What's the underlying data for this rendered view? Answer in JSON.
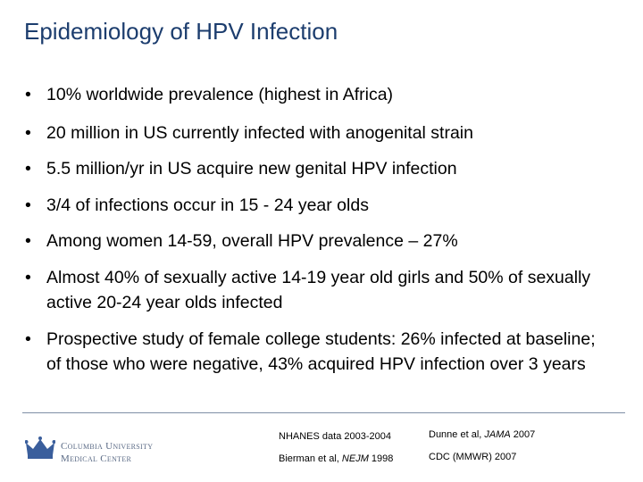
{
  "slide": {
    "title": "Epidemiology of HPV Infection",
    "bullets": [
      "10% worldwide prevalence (highest in Africa)",
      "20 million in US currently infected with anogenital strain",
      "5.5 million/yr in US acquire new genital HPV infection",
      "3/4 of infections occur in 15 - 24 year olds",
      "Among women 14-59, overall HPV prevalence – 27%",
      "Almost 40% of sexually active 14-19 year old girls and 50% of sexually active 20-24 year olds infected",
      "Prospective study of female college students: 26% infected at baseline; of those who were negative, 43% acquired HPV infection over 3 years"
    ],
    "logo": {
      "line1": "Columbia University",
      "line2": "Medical Center"
    },
    "references": [
      {
        "parts": [
          "NHANES data 2003-2004"
        ]
      },
      {
        "parts": [
          "Dunne et al, ",
          "JAMA",
          " 2007"
        ]
      },
      {
        "parts": [
          "Bierman et al, ",
          "NEJM",
          " 1998"
        ]
      },
      {
        "parts": [
          "CDC (MMWR) 2007"
        ]
      }
    ]
  }
}
